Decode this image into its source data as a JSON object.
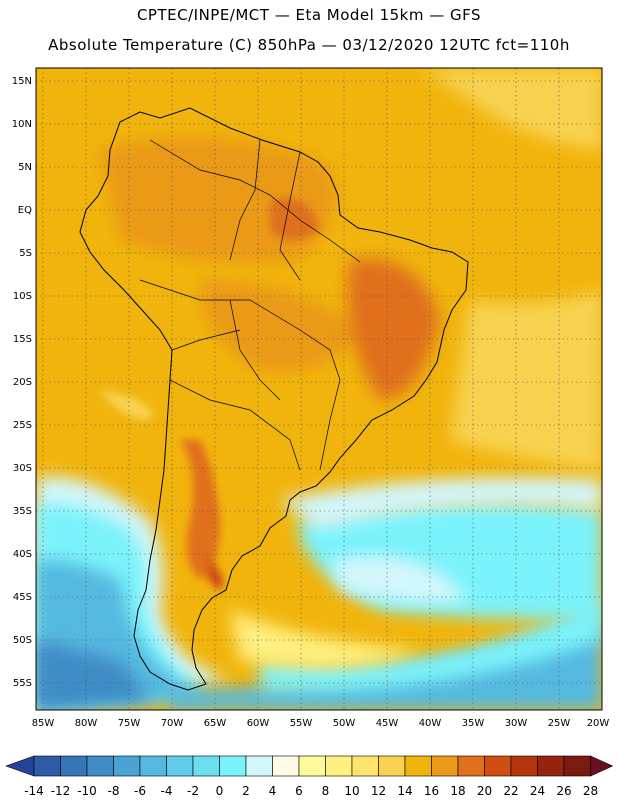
{
  "header": {
    "line1": "CPTEC/INPE/MCT —  Eta Model 15km — GFS",
    "line2": "Absolute Temperature (C) 850hPa — 03/12/2020 12UTC fct=110h"
  },
  "map": {
    "region": "South America",
    "graticule": "dotted",
    "lat_labels": [
      "15N",
      "10N",
      "5N",
      "EQ",
      "5S",
      "10S",
      "15S",
      "20S",
      "25S",
      "30S",
      "35S",
      "40S",
      "45S",
      "50S",
      "55S"
    ],
    "lat_values": [
      15,
      10,
      5,
      0,
      -5,
      -10,
      -15,
      -20,
      -25,
      -30,
      -35,
      -40,
      -45,
      -50,
      -55
    ],
    "lon_labels": [
      "85W",
      "80W",
      "75W",
      "70W",
      "65W",
      "60W",
      "55W",
      "50W",
      "45W",
      "40W",
      "35W",
      "30W",
      "25W",
      "20W"
    ],
    "lon_values": [
      -85,
      -80,
      -75,
      -70,
      -65,
      -60,
      -55,
      -50,
      -45,
      -40,
      -35,
      -30,
      -25,
      -20
    ]
  },
  "colorbar": {
    "labels": [
      "-14",
      "-12",
      "-10",
      "-8",
      "-6",
      "-4",
      "-2",
      "0",
      "2",
      "4",
      "6",
      "8",
      "10",
      "12",
      "14",
      "16",
      "18",
      "20",
      "22",
      "24",
      "26",
      "28"
    ],
    "colors": [
      "#23449a",
      "#2c5ca8",
      "#3575b8",
      "#3f8cc6",
      "#4aa3d3",
      "#55b9df",
      "#5fcde8",
      "#6adff0",
      "#7af2fb",
      "#d2f6fb",
      "#fffae6",
      "#fffa99",
      "#fff080",
      "#fde46b",
      "#f8d24f",
      "#f1b40c",
      "#ea9a18",
      "#e0701b",
      "#cf4e12",
      "#b5360e",
      "#96240c",
      "#7b1a10",
      "#6a0f20"
    ]
  }
}
